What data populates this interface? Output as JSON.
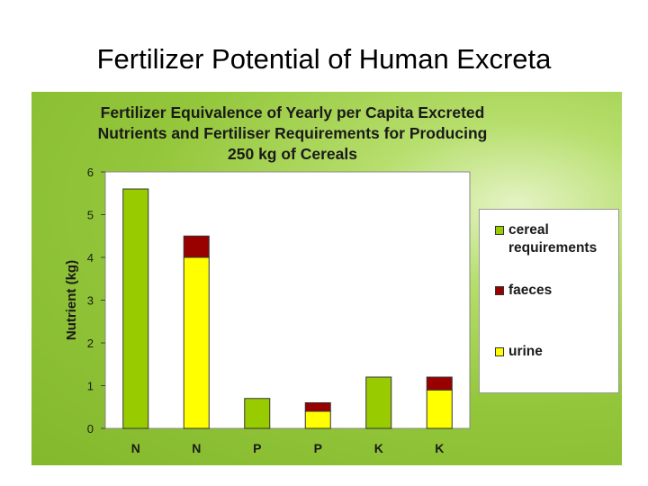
{
  "slide": {
    "title": "Fertilizer Potential of Human Excreta"
  },
  "chart_data": {
    "type": "bar",
    "stacked": true,
    "title": "Fertilizer Equivalence of Yearly per Capita Excreted Nutrients and Fertiliser Requirements for Producing 250 kg of Cereals",
    "title_lines": [
      "Fertilizer Equivalence of Yearly per Capita Excreted",
      "Nutrients and Fertiliser Requirements for Producing",
      "250 kg of Cereals"
    ],
    "xlabel": "",
    "ylabel": "Nutrient (kg)",
    "ylim": [
      0,
      6
    ],
    "yticks": [
      0,
      1,
      2,
      3,
      4,
      5,
      6
    ],
    "grid": false,
    "legend_position": "right",
    "categories": [
      "N",
      "N",
      "P",
      "P",
      "K",
      "K"
    ],
    "series": [
      {
        "name": "cereal requirements",
        "color": "#99cc00",
        "values": [
          5.6,
          0,
          0.7,
          0,
          1.2,
          0
        ]
      },
      {
        "name": "urine",
        "color": "#ffff00",
        "values": [
          0,
          4.0,
          0,
          0.4,
          0,
          0.9
        ]
      },
      {
        "name": "faeces",
        "color": "#990000",
        "values": [
          0,
          0.5,
          0,
          0.2,
          0,
          0.3
        ]
      }
    ],
    "legend_entries": [
      {
        "label_lines": [
          "cereal",
          "requirements"
        ],
        "color": "#99cc00"
      },
      {
        "label_lines": [
          "faeces"
        ],
        "color": "#990000"
      },
      {
        "label_lines": [
          "urine"
        ],
        "color": "#ffff00"
      }
    ]
  }
}
